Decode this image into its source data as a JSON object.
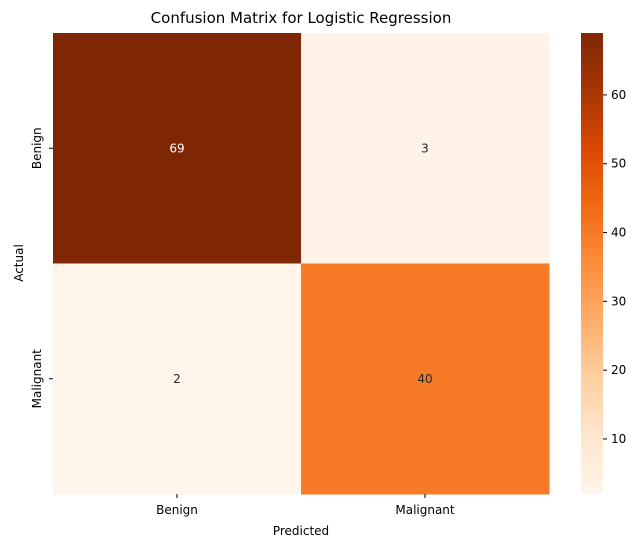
{
  "chart_data": {
    "type": "heatmap",
    "title": "Confusion Matrix for Logistic Regression",
    "xlabel": "Predicted",
    "ylabel": "Actual",
    "x_categories": [
      "Benign",
      "Malignant"
    ],
    "y_categories": [
      "Benign",
      "Malignant"
    ],
    "values": [
      [
        69,
        3
      ],
      [
        2,
        40
      ]
    ],
    "colormap": "Oranges",
    "color_range": [
      2,
      69
    ],
    "colorbar_ticks": [
      10,
      20,
      30,
      40,
      50,
      60
    ],
    "annotations": true
  }
}
